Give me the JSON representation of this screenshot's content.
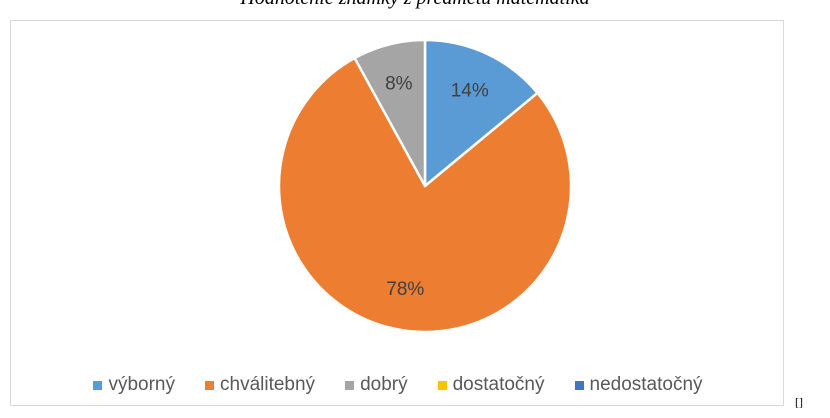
{
  "caption": "Hodnotenie známky z predmetu matematika",
  "corner_mark": "[]",
  "chart_data": {
    "type": "pie",
    "title": "",
    "series": [
      {
        "label": "výborný",
        "value": 14,
        "color": "#5b9bd5",
        "data_label": "14%"
      },
      {
        "label": "chválitebný",
        "value": 78,
        "color": "#ed7d31",
        "data_label": "78%"
      },
      {
        "label": "dobrý",
        "value": 8,
        "color": "#a5a5a5",
        "data_label": "8%"
      },
      {
        "label": "dostatočný",
        "value": 0,
        "color": "#ffc000",
        "data_label": ""
      },
      {
        "label": "nedostatočný",
        "value": 0,
        "color": "#4472c4",
        "data_label": ""
      }
    ],
    "legend_position": "bottom",
    "data_label_color": "#404040"
  }
}
